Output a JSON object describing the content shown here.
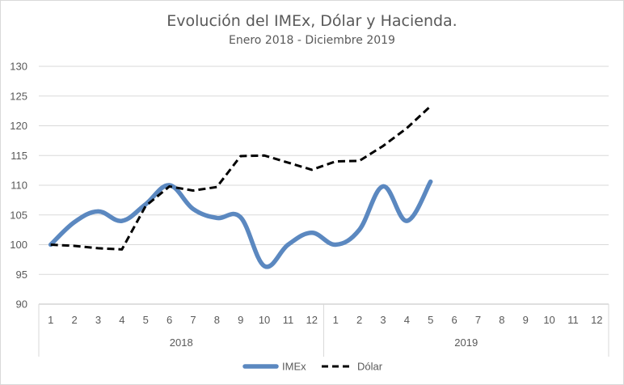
{
  "chart_data": {
    "type": "line",
    "title": "Evolución del IMEx, Dólar y Hacienda.",
    "subtitle": "Enero 2018 - Diciembre 2019",
    "ylim": [
      90,
      130
    ],
    "y_ticks": [
      "90",
      "95",
      "100",
      "105",
      "110",
      "115",
      "120",
      "125",
      "130"
    ],
    "grid": true,
    "legend_position": "bottom",
    "categories": [
      "1",
      "2",
      "3",
      "4",
      "5",
      "6",
      "7",
      "8",
      "9",
      "10",
      "11",
      "12",
      "1",
      "2",
      "3",
      "4",
      "5",
      "6",
      "7",
      "8",
      "9",
      "10",
      "11",
      "12"
    ],
    "groups": [
      {
        "label": "2018",
        "count": 12
      },
      {
        "label": "2019",
        "count": 12
      }
    ],
    "series": [
      {
        "name": "IMEx",
        "color": "#5b88c0",
        "style": "solid-smooth",
        "values": [
          100.0,
          103.8,
          105.6,
          104.0,
          106.8,
          110.0,
          106.0,
          104.5,
          104.6,
          96.4,
          100.0,
          102.0,
          100.0,
          102.5,
          109.8,
          104.0,
          110.6,
          null,
          null,
          null,
          null,
          null,
          null,
          null
        ]
      },
      {
        "name": "Dólar",
        "color": "#000000",
        "style": "dashed",
        "values": [
          100.0,
          99.8,
          99.4,
          99.2,
          106.5,
          109.8,
          109.1,
          109.7,
          114.9,
          115.0,
          113.8,
          112.6,
          114.0,
          114.1,
          116.6,
          119.6,
          123.3,
          null,
          null,
          null,
          null,
          null,
          null,
          null
        ]
      }
    ]
  }
}
